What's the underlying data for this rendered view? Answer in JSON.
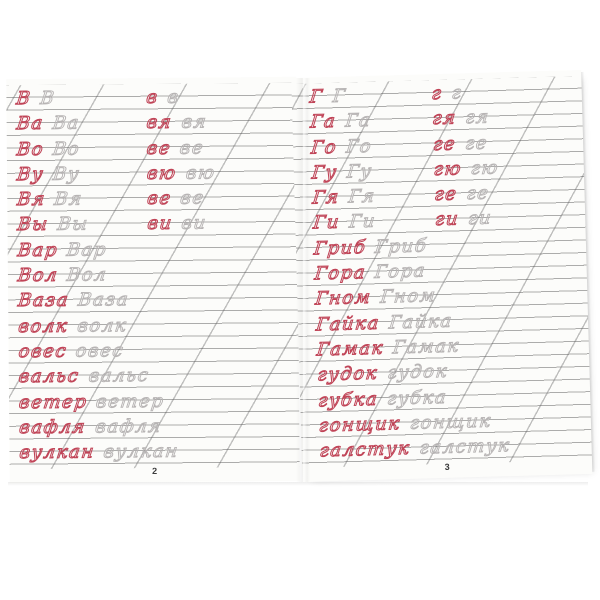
{
  "colors": {
    "ink_model_red": "#c04457",
    "ink_traced_gray": "#b7b4b4",
    "rule_gray": "#626262",
    "paper": "#fcfcfa"
  },
  "spread": {
    "left_page": {
      "page_number": "2",
      "rows": [
        {
          "m_red": "В",
          "m_gray": "В",
          "s_red": "в",
          "s_gray": "в"
        },
        {
          "m_red": "Ва",
          "m_gray": "Ва",
          "s_red": "вя",
          "s_gray": "вя"
        },
        {
          "m_red": "Во",
          "m_gray": "Во",
          "s_red": "ве",
          "s_gray": "ве"
        },
        {
          "m_red": "Ву",
          "m_gray": "Ву",
          "s_red": "вю",
          "s_gray": "вю"
        },
        {
          "m_red": "Вя",
          "m_gray": "Вя",
          "s_red": "ве",
          "s_gray": "ве"
        },
        {
          "m_red": "Вы",
          "m_gray": "Вы",
          "s_red": "ви",
          "s_gray": "ви"
        },
        {
          "m_red": "Вар",
          "m_gray": "Вар"
        },
        {
          "m_red": "Вол",
          "m_gray": "Вол"
        },
        {
          "m_red": "Ваза",
          "m_gray": "Ваза"
        },
        {
          "m_red": "волк",
          "m_gray": "волк"
        },
        {
          "m_red": "овес",
          "m_gray": "овес"
        },
        {
          "m_red": "вальс",
          "m_gray": "вальс"
        },
        {
          "m_red": "ветер",
          "m_gray": "ветер"
        },
        {
          "m_red": "вафля",
          "m_gray": "вафля"
        },
        {
          "m_red": "вулкан",
          "m_gray": "вулкан"
        }
      ]
    },
    "right_page": {
      "page_number": "3",
      "rows": [
        {
          "m_red": "Г",
          "m_gray": "Г",
          "s_red": "г",
          "s_gray": "г"
        },
        {
          "m_red": "Га",
          "m_gray": "Га",
          "s_red": "гя",
          "s_gray": "гя"
        },
        {
          "m_red": "Го",
          "m_gray": "Го",
          "s_red": "ге",
          "s_gray": "ге"
        },
        {
          "m_red": "Гу",
          "m_gray": "Гу",
          "s_red": "гю",
          "s_gray": "гю"
        },
        {
          "m_red": "Гя",
          "m_gray": "Гя",
          "s_red": "ге",
          "s_gray": "ге"
        },
        {
          "m_red": "Ги",
          "m_gray": "Ги",
          "s_red": "ги",
          "s_gray": "ги"
        },
        {
          "m_red": "Гриб",
          "m_gray": "Гриб"
        },
        {
          "m_red": "Гора",
          "m_gray": "Гора"
        },
        {
          "m_red": "Гном",
          "m_gray": "Гном"
        },
        {
          "m_red": "Гайка",
          "m_gray": "Гайка"
        },
        {
          "m_red": "Гамак",
          "m_gray": "Гамак"
        },
        {
          "m_red": "гудок",
          "m_gray": "гудок"
        },
        {
          "m_red": "губка",
          "m_gray": "губка"
        },
        {
          "m_red": "гонщик",
          "m_gray": "гонщик"
        },
        {
          "m_red": "галстук",
          "m_gray": "галстук"
        }
      ]
    }
  }
}
